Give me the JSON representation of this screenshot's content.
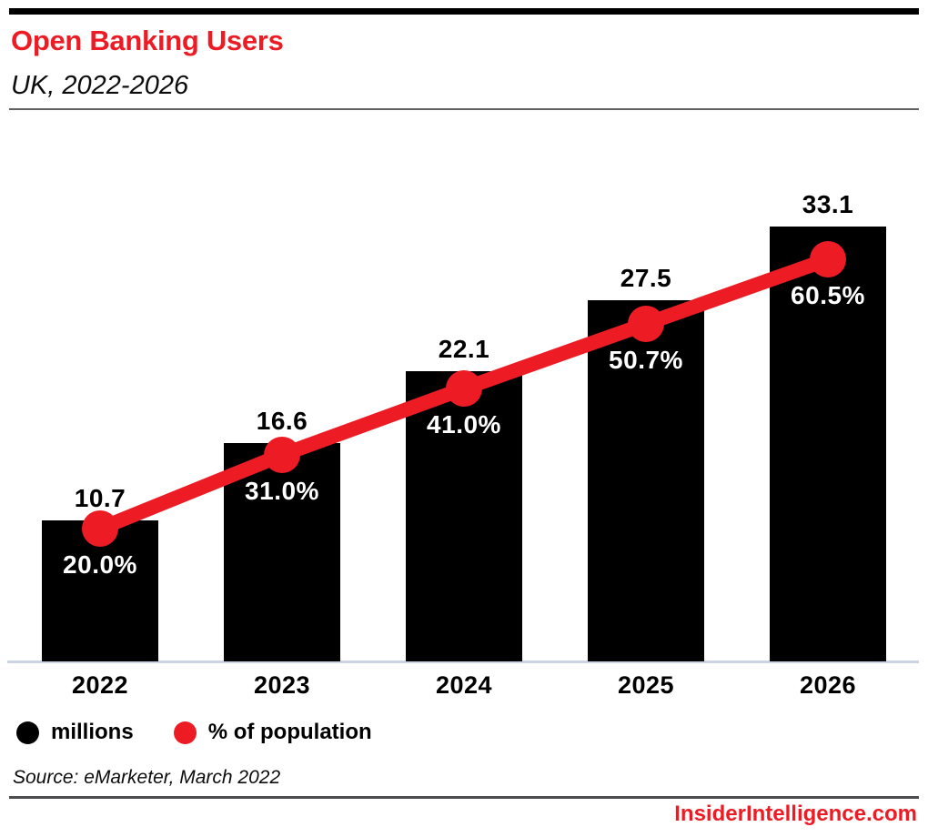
{
  "header": {
    "title": "Open Banking Users",
    "subtitle": "UK, 2022-2026"
  },
  "chart_data": {
    "type": "bar",
    "title": "Open Banking Users",
    "subtitle": "UK, 2022-2026",
    "categories": [
      "2022",
      "2023",
      "2024",
      "2025",
      "2026"
    ],
    "series": [
      {
        "name": "millions",
        "type": "bar",
        "color": "#000000",
        "values": [
          10.7,
          16.6,
          22.1,
          27.5,
          33.1
        ],
        "labels": [
          "10.7",
          "16.6",
          "22.1",
          "27.5",
          "33.1"
        ]
      },
      {
        "name": "% of population",
        "type": "line",
        "color": "#ED1C24",
        "values": [
          20.0,
          31.0,
          41.0,
          50.7,
          60.5
        ],
        "labels": [
          "20.0%",
          "31.0%",
          "41.0%",
          "50.7%",
          "60.5%"
        ]
      }
    ],
    "xlabel": "",
    "ylabel": "",
    "ylim_left": [
      0,
      39.2
    ],
    "ylim_right": [
      0,
      77.6
    ],
    "grid": false,
    "legend_position": "bottom-left"
  },
  "legend": {
    "items": [
      {
        "label": "millions",
        "color": "#000000"
      },
      {
        "label": "% of population",
        "color": "#ED1C24"
      }
    ]
  },
  "footer": {
    "source": "Source: eMarketer, March 2022",
    "brand": "InsiderIntelligence.com"
  },
  "colors": {
    "accent_red": "#ED1C24",
    "bar_black": "#000000",
    "axis_line": "#ccd4e4",
    "top_bar": "#000000"
  }
}
